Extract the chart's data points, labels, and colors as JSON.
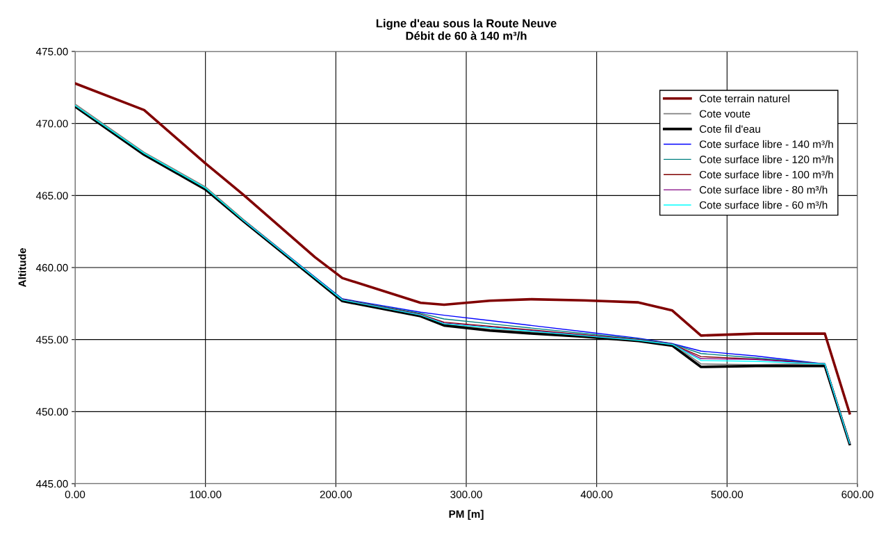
{
  "chart_data": {
    "type": "line",
    "title": "Ligne d'eau sous la Route Neuve\nDébit de 60 à 140 m³/h",
    "xlabel": "PM [m]",
    "ylabel": "Altitude",
    "x": [
      0,
      53,
      100,
      129,
      205,
      265,
      283,
      318,
      350,
      390,
      432,
      458,
      480,
      522,
      575,
      594
    ],
    "series": [
      {
        "name": "Cote terrain naturel",
        "color": "#800000",
        "x": [
          0,
          53,
          100,
          129,
          184,
          205,
          265,
          283,
          318,
          350,
          390,
          432,
          458,
          480,
          522,
          575,
          594
        ],
        "values": [
          472.78,
          470.93,
          467.23,
          465.06,
          460.72,
          459.27,
          457.55,
          457.42,
          457.7,
          457.8,
          457.72,
          457.58,
          457.02,
          455.28,
          455.41,
          455.41,
          449.88
        ]
      },
      {
        "name": "Cote voute",
        "color": "#808080",
        "values": [
          471.35,
          468.0,
          465.6,
          463.35,
          457.8,
          456.75,
          456.05,
          455.72,
          455.52,
          455.3,
          455.02,
          454.72,
          453.31,
          453.26,
          453.35,
          447.9
        ]
      },
      {
        "name": "Cote fil d'eau",
        "color": "#000000",
        "values": [
          471.17,
          467.83,
          465.42,
          463.22,
          457.67,
          456.62,
          455.98,
          455.62,
          455.42,
          455.2,
          454.9,
          454.58,
          453.1,
          453.17,
          453.18,
          447.75
        ]
      },
      {
        "name": "Cote surface libre - 140 m³/h",
        "color": "#0000ff",
        "values": [
          null,
          null,
          null,
          463.28,
          457.83,
          456.9,
          456.69,
          456.32,
          455.98,
          455.55,
          455.1,
          454.72,
          454.2,
          453.86,
          453.31,
          447.8
        ]
      },
      {
        "name": "Cote surface libre - 120 m³/h",
        "color": "#008080",
        "values": [
          471.25,
          467.93,
          465.52,
          463.28,
          457.8,
          456.82,
          456.43,
          456.1,
          455.8,
          455.43,
          455.05,
          454.7,
          454.03,
          453.73,
          453.31,
          447.8
        ]
      },
      {
        "name": "Cote surface libre - 100 m³/h",
        "color": "#800000",
        "values": [
          null,
          null,
          null,
          null,
          457.78,
          456.75,
          456.21,
          455.93,
          455.67,
          455.34,
          455.0,
          454.68,
          453.82,
          453.65,
          453.31,
          447.8
        ]
      },
      {
        "name": "Cote surface libre - 80 m³/h",
        "color": "#800080",
        "values": [
          null,
          null,
          null,
          463.28,
          457.77,
          456.72,
          456.15,
          455.87,
          455.62,
          455.3,
          454.97,
          454.67,
          453.68,
          453.62,
          453.31,
          447.8
        ]
      },
      {
        "name": "Cote surface libre - 60 m³/h",
        "color": "#00ffff",
        "values": [
          471.25,
          467.93,
          465.52,
          463.28,
          457.75,
          456.7,
          456.1,
          455.83,
          455.58,
          455.27,
          454.95,
          454.66,
          453.55,
          453.49,
          453.31,
          447.8
        ]
      }
    ],
    "xlim": [
      0,
      600
    ],
    "ylim": [
      445,
      475
    ],
    "xticks": [
      {
        "value": 0,
        "label": "0.00"
      },
      {
        "value": 100,
        "label": "100.00"
      },
      {
        "value": 200,
        "label": "200.00"
      },
      {
        "value": 300,
        "label": "300.00"
      },
      {
        "value": 400,
        "label": "400.00"
      },
      {
        "value": 500,
        "label": "500.00"
      },
      {
        "value": 600,
        "label": "600.00"
      }
    ],
    "yticks": [
      {
        "value": 445,
        "label": "445.00"
      },
      {
        "value": 450,
        "label": "450.00"
      },
      {
        "value": 455,
        "label": "455.00"
      },
      {
        "value": 460,
        "label": "460.00"
      },
      {
        "value": 465,
        "label": "465.00"
      },
      {
        "value": 470,
        "label": "470.00"
      },
      {
        "value": 475,
        "label": "475.00"
      }
    ],
    "grid": true,
    "legend": "top right",
    "marker": "none",
    "line_style": "solid"
  }
}
